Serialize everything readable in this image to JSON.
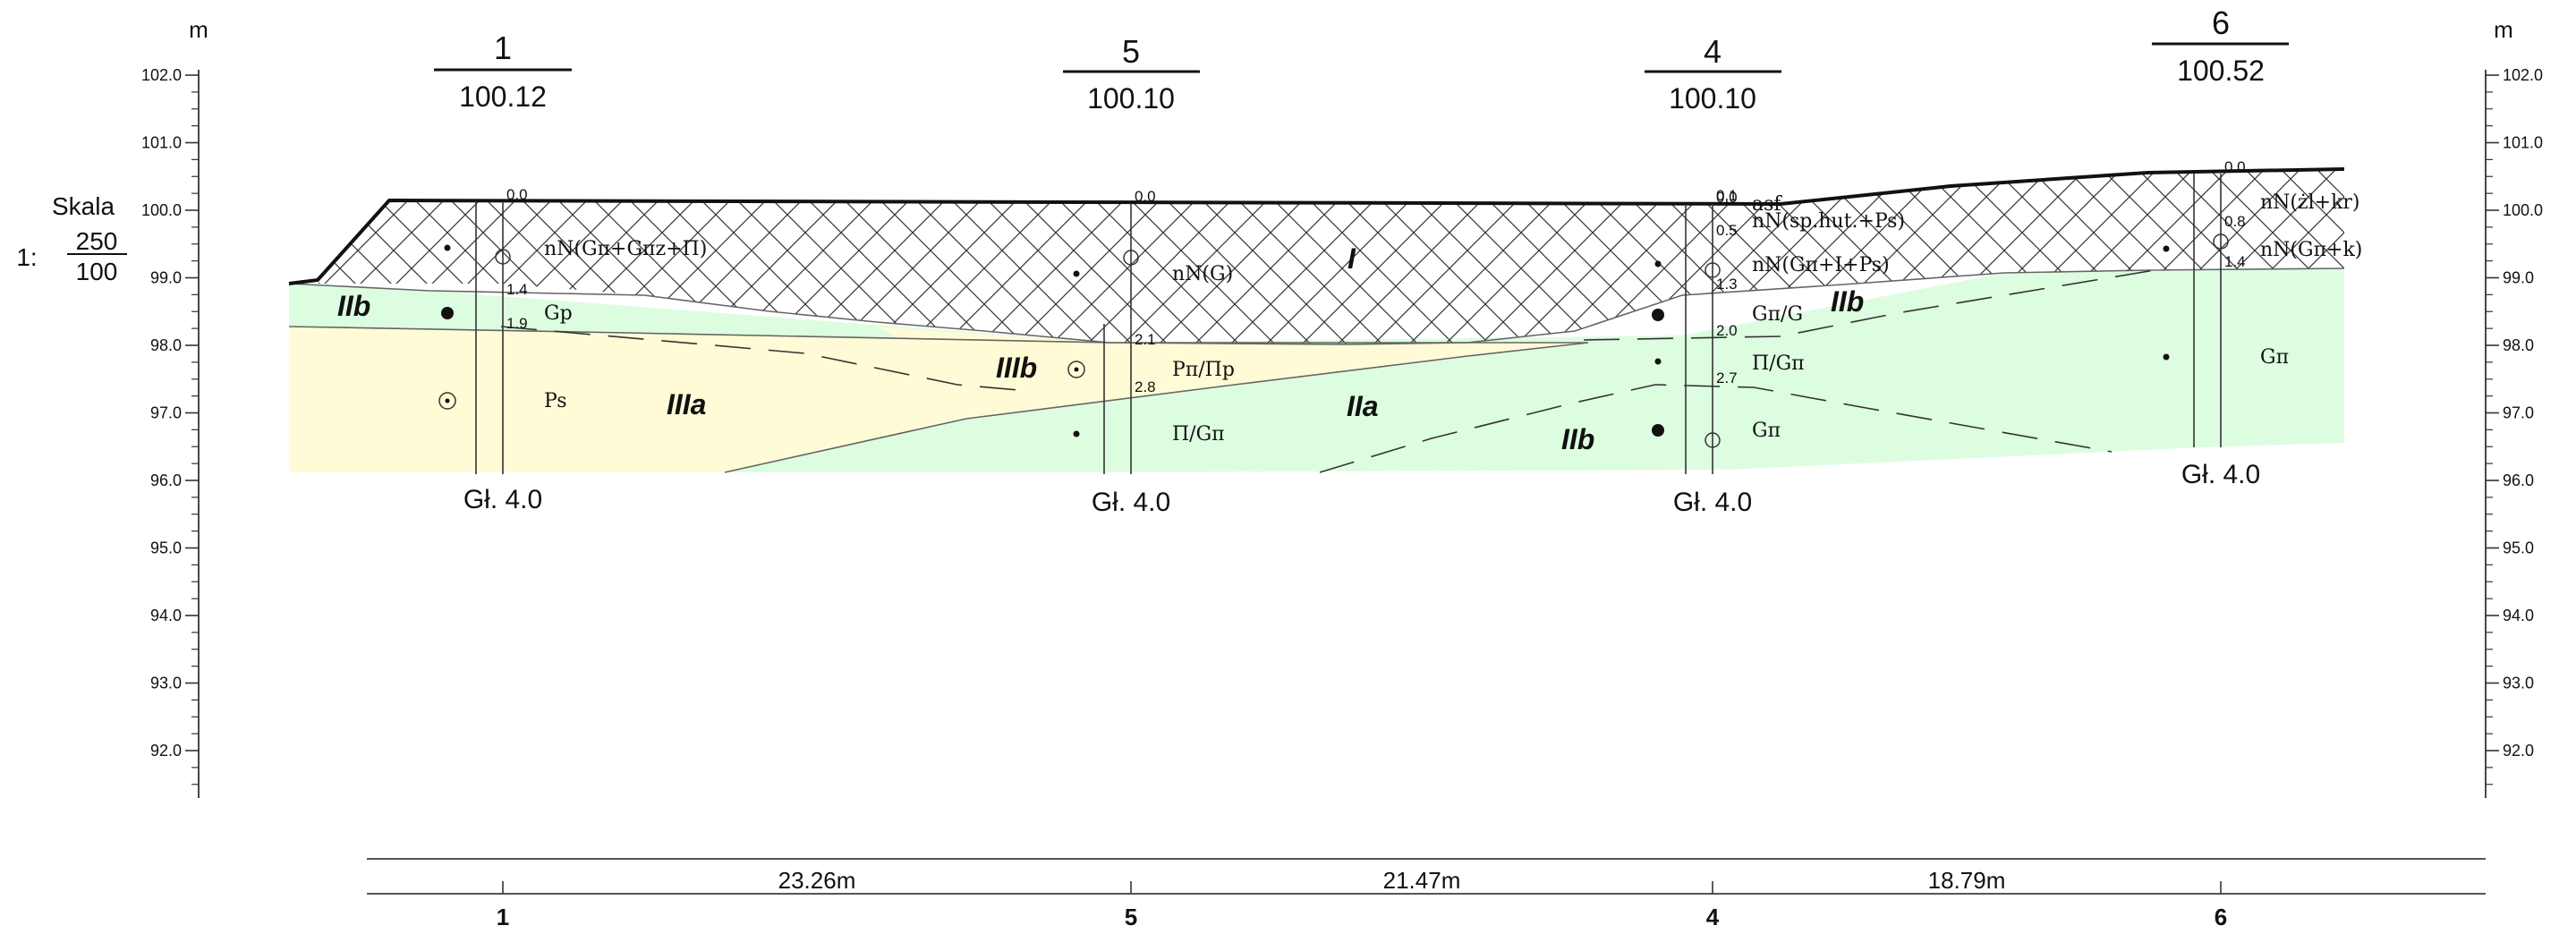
{
  "axis": {
    "unit_left": "m",
    "unit_right": "m",
    "ticks": [
      "102.0",
      "101.0",
      "100.0",
      "99.0",
      "98.0",
      "97.0",
      "96.0",
      "95.0",
      "94.0",
      "93.0",
      "92.0"
    ]
  },
  "scale": {
    "title": "Skala",
    "prefix": "1:",
    "numerator": "250",
    "denominator": "100"
  },
  "boreholes": [
    {
      "id": "bh1",
      "number": "1",
      "elevation": "100.12",
      "depth_label": "Gł. 4.0",
      "depth_marks": [
        "0.0",
        "1.4",
        "1.9"
      ]
    },
    {
      "id": "bh5",
      "number": "5",
      "elevation": "100.10",
      "depth_label": "Gł. 4.0",
      "depth_marks": [
        "0.0",
        "2.1",
        "2.8"
      ]
    },
    {
      "id": "bh4",
      "number": "4",
      "elevation": "100.10",
      "depth_label": "Gł. 4.0",
      "depth_marks": [
        "0.0",
        "0.1",
        "0.5",
        "1.3",
        "2.0",
        "2.7"
      ]
    },
    {
      "id": "bh6",
      "number": "6",
      "elevation": "100.52",
      "depth_label": "Gł. 4.0",
      "depth_marks": [
        "0.0",
        "0.8",
        "1.4"
      ]
    }
  ],
  "soil_labels": {
    "bh1_fill": "nN(Gπ+Gπz+Π)",
    "bh1_gp": "Gp",
    "bh1_ps": "Ps",
    "bh5_fill": "nN(G)",
    "bh5_ppp": "Pπ/Πp",
    "bh5_pg": "Π/Gπ",
    "bh4_asf": "asf",
    "bh4_sp": "nN(sp.hut.+Ps)",
    "bh4_fill": "nN(Gπ+I+Ps)",
    "bh4_gg": "Gπ/G",
    "bh4_pg": "Π/Gπ",
    "bh4_gpi": "Gπ",
    "bh6_zl": "nN(żl+kr)",
    "bh6_fill": "nN(Gπ+k)",
    "bh6_gpi": "Gπ"
  },
  "layer_codes": {
    "I": "I",
    "IIa": "IIa",
    "IIb_left": "IIb",
    "IIb_mid": "IIb",
    "IIb_right": "IIb",
    "IIIa": "IIIa",
    "IIIb": "IIIb"
  },
  "distances": [
    "23.26m",
    "21.47m",
    "18.79m"
  ],
  "bottom_axis_labels": [
    "1",
    "5",
    "4",
    "6"
  ],
  "colors": {
    "fill_layer": "#ffffff",
    "sand_layer": "#fffbd6",
    "clay_layer": "#ddfde1",
    "line": "#111111",
    "boundary": "#666666"
  }
}
